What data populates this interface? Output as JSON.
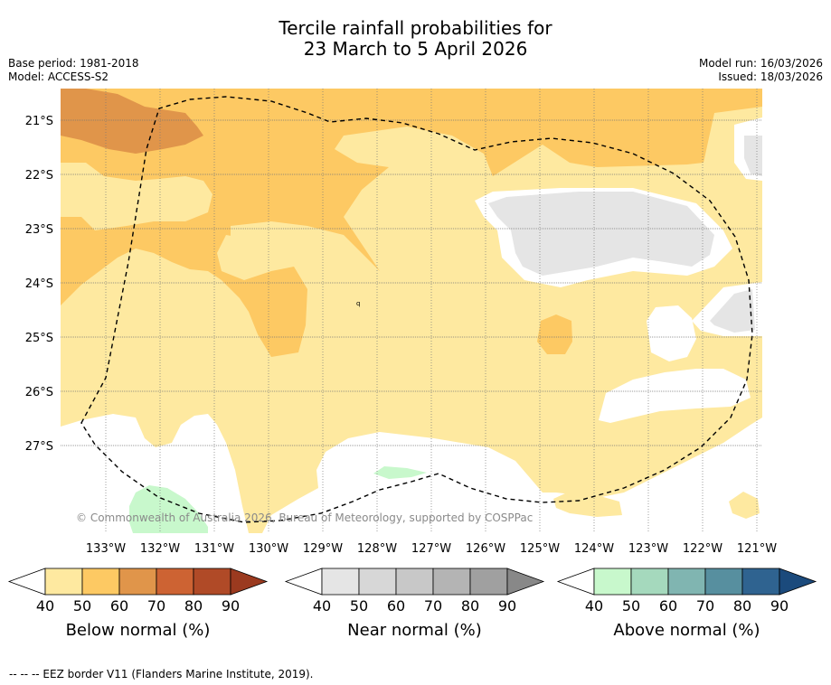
{
  "title_line1": "Tercile rainfall probabilities for",
  "title_line2": "23 March to 5 April 2026",
  "base_period": "Base period: 1981-2018",
  "model": "Model: ACCESS-S2",
  "model_run": "Model run: 16/03/2026",
  "issued": "Issued: 18/03/2026",
  "copyright": "© Commonwealth of Australia 2026, Bureau of Meteorology, supported by COSPPac",
  "footer_note": "--  --  -- EEZ border V11 (Flanders Marine Institute, 2019).",
  "latitudes": [
    "21°S",
    "22°S",
    "23°S",
    "24°S",
    "25°S",
    "26°S",
    "27°S"
  ],
  "longitudes": [
    "133°W",
    "132°W",
    "131°W",
    "130°W",
    "129°W",
    "128°W",
    "127°W",
    "126°W",
    "125°W",
    "124°W",
    "123°W",
    "122°W",
    "121°W"
  ],
  "colorbars": [
    {
      "label": "Below normal (%)",
      "ticks": [
        "40",
        "50",
        "60",
        "70",
        "80",
        "90"
      ],
      "colors": [
        "#fee9a0",
        "#fdc963",
        "#e0954a",
        "#cd6333",
        "#b04a27",
        "#9b3a1f"
      ]
    },
    {
      "label": "Near normal (%)",
      "ticks": [
        "40",
        "50",
        "60",
        "70",
        "80",
        "90"
      ],
      "colors": [
        "#e5e5e5",
        "#d7d7d7",
        "#c8c8c8",
        "#b4b4b4",
        "#a0a0a0",
        "#888888"
      ]
    },
    {
      "label": "Above normal (%)",
      "ticks": [
        "40",
        "50",
        "60",
        "70",
        "80",
        "90"
      ],
      "colors": [
        "#c8f8cc",
        "#a5d9bd",
        "#80b5b1",
        "#578f9f",
        "#2f6390",
        "#1b4a7c"
      ]
    }
  ],
  "colors": {
    "below_40": "#fee9a0",
    "below_50": "#fdc963",
    "below_60": "#e0954a",
    "below_70": "#cd6333",
    "near_40": "#e5e5e5",
    "above_40": "#c8f8cc",
    "no_signal": "#ffffff"
  }
}
